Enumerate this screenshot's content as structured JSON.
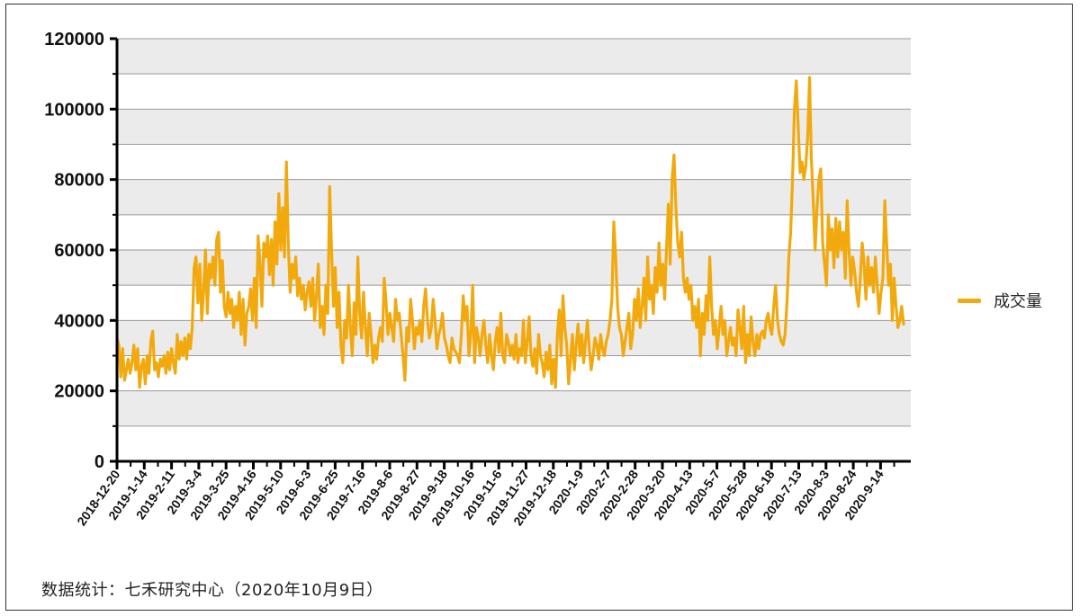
{
  "chart_data": {
    "type": "line",
    "title": "",
    "xlabel": "",
    "ylabel": "",
    "ylim": [
      0,
      120000
    ],
    "y_ticks": [
      0,
      20000,
      40000,
      60000,
      80000,
      100000,
      120000
    ],
    "y_tick_labels": [
      "0",
      "20000",
      "40000",
      "60000",
      "80000",
      "100000",
      "120000"
    ],
    "x_tick_labels": [
      "2018-12-20",
      "2019-1-14",
      "2019-2-11",
      "2019-3-4",
      "2019-3-25",
      "2019-4-16",
      "2019-5-10",
      "2019-6-3",
      "2019-6-25",
      "2019-7-16",
      "2019-8-6",
      "2019-8-27",
      "2019-9-18",
      "2019-10-16",
      "2019-11-6",
      "2019-11-27",
      "2019-12-18",
      "2020-1-9",
      "2020-2-7",
      "2020-2-28",
      "2020-3-20",
      "2020-4-13",
      "2020-5-7",
      "2020-5-28",
      "2020-6-18",
      "2020-7-13",
      "2020-8-3",
      "2020-8-24",
      "2020-9-14"
    ],
    "grid": true,
    "grid_bands": "alternating",
    "legend_position": "right",
    "series": [
      {
        "name": "成交量",
        "color": "#F2A90D",
        "values": [
          35000,
          33000,
          24000,
          32000,
          23000,
          26000,
          29000,
          25000,
          28000,
          33000,
          26000,
          32000,
          21000,
          27000,
          29000,
          22000,
          30000,
          25000,
          34000,
          37000,
          26000,
          28000,
          24000,
          29000,
          27000,
          30000,
          25000,
          31000,
          26000,
          32000,
          28000,
          25000,
          36000,
          29000,
          34000,
          30000,
          35000,
          29000,
          36000,
          32000,
          38000,
          55000,
          58000,
          45000,
          56000,
          40000,
          48000,
          60000,
          42000,
          56000,
          52000,
          58000,
          50000,
          63000,
          65000,
          48000,
          57000,
          44000,
          41000,
          48000,
          42000,
          46000,
          38000,
          44000,
          40000,
          48000,
          36000,
          46000,
          33000,
          42000,
          44000,
          49000,
          40000,
          52000,
          38000,
          64000,
          56000,
          44000,
          62000,
          58000,
          64000,
          53000,
          63000,
          50000,
          68000,
          56000,
          76000,
          60000,
          72000,
          58000,
          85000,
          62000,
          48000,
          56000,
          52000,
          58000,
          47000,
          52000,
          46000,
          50000,
          43000,
          48000,
          51000,
          44000,
          52000,
          40000,
          47000,
          56000,
          38000,
          44000,
          36000,
          50000,
          42000,
          78000,
          60000,
          44000,
          55000,
          38000,
          48000,
          33000,
          28000,
          40000,
          35000,
          50000,
          38000,
          30000,
          45000,
          36000,
          58000,
          42000,
          35000,
          48000,
          38000,
          30000,
          42000,
          36000,
          28000,
          33000,
          29000,
          35000,
          38000,
          34000,
          52000,
          45000,
          36000,
          42000,
          38000,
          34000,
          46000,
          40000,
          42000,
          36000,
          30000,
          23000,
          38000,
          34000,
          46000,
          40000,
          32000,
          38000,
          36000,
          40000,
          34000,
          44000,
          49000,
          40000,
          35000,
          38000,
          46000,
          40000,
          32000,
          36000,
          38000,
          42000,
          35000,
          33000,
          30000,
          28000,
          35000,
          32000,
          31000,
          30000,
          28000,
          36000,
          47000,
          40000,
          44000,
          30000,
          36000,
          50000,
          28000,
          38000,
          35000,
          30000,
          36000,
          40000,
          33000,
          28000,
          36000,
          30000,
          26000,
          34000,
          38000,
          31000,
          42000,
          30000,
          28000,
          36000,
          34000,
          30000,
          33000,
          29000,
          36000,
          28000,
          32000,
          30000,
          40000,
          28000,
          34000,
          41000,
          30000,
          27000,
          32000,
          25000,
          36000,
          30000,
          28000,
          24000,
          31000,
          26000,
          33000,
          22000,
          29000,
          21000,
          36000,
          43000,
          30000,
          47000,
          38000,
          33000,
          22000,
          29000,
          36000,
          26000,
          33000,
          39000,
          30000,
          36000,
          28000,
          34000,
          40000,
          32000,
          26000,
          30000,
          35000,
          33000,
          29000,
          36000,
          32000,
          30000,
          34000,
          36000,
          40000,
          46000,
          68000,
          58000,
          44000,
          38000,
          36000,
          30000,
          34000,
          38000,
          42000,
          32000,
          36000,
          46000,
          40000,
          49000,
          38000,
          44000,
          52000,
          40000,
          58000,
          46000,
          50000,
          42000,
          55000,
          48000,
          62000,
          50000,
          56000,
          46000,
          60000,
          73000,
          56000,
          80000,
          87000,
          72000,
          62000,
          58000,
          65000,
          52000,
          48000,
          52000,
          46000,
          50000,
          40000,
          44000,
          38000,
          46000,
          30000,
          42000,
          36000,
          47000,
          40000,
          58000,
          44000,
          36000,
          40000,
          32000,
          38000,
          44000,
          36000,
          40000,
          30000,
          34000,
          38000,
          33000,
          35000,
          30000,
          43000,
          38000,
          32000,
          44000,
          28000,
          36000,
          30000,
          41000,
          34000,
          30000,
          36000,
          32000,
          36000,
          37000,
          35000,
          40000,
          42000,
          38000,
          36000,
          44000,
          50000,
          40000,
          36000,
          34000,
          33000,
          36000,
          45000,
          58000,
          65000,
          80000,
          100000,
          108000,
          95000,
          82000,
          85000,
          80000,
          84000,
          92000,
          109000,
          86000,
          74000,
          60000,
          72000,
          80000,
          83000,
          62000,
          56000,
          50000,
          70000,
          60000,
          66000,
          55000,
          69000,
          58000,
          68000,
          60000,
          65000,
          52000,
          74000,
          60000,
          50000,
          58000,
          54000,
          48000,
          44000,
          52000,
          62000,
          56000,
          46000,
          58000,
          50000,
          55000,
          48000,
          58000,
          50000,
          42000,
          48000,
          52000,
          74000,
          62000,
          50000,
          56000,
          40000,
          52000,
          44000,
          38000,
          40000,
          44000,
          39000
        ]
      }
    ]
  },
  "legend": {
    "label": "成交量",
    "color": "#F2A90D"
  },
  "source_note": "数据统计：七禾研究中心（2020年10月9日）"
}
